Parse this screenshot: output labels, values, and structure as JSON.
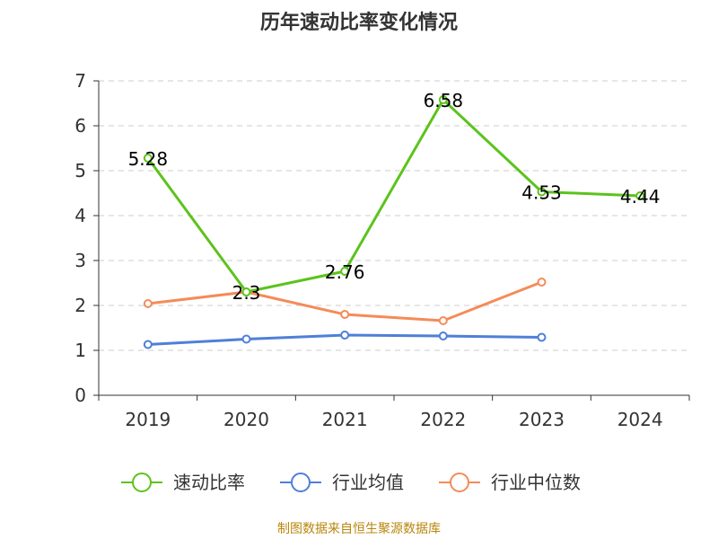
{
  "chart_data": {
    "type": "line",
    "title": "历年速动比率变化情况",
    "categories": [
      "2019",
      "2020",
      "2021",
      "2022",
      "2023",
      "2024"
    ],
    "ylim": [
      0,
      7
    ],
    "yticks": [
      "0",
      "1",
      "2",
      "3",
      "4",
      "5",
      "6",
      "7"
    ],
    "grid": true,
    "legend_position": "bottom",
    "series": [
      {
        "name": "速动比率",
        "color": "#5cc31c",
        "values": [
          5.28,
          2.3,
          2.76,
          6.58,
          4.53,
          4.44
        ],
        "labels": [
          "5.28",
          "2.3",
          "2.76",
          "6.58",
          "4.53",
          "4.44"
        ]
      },
      {
        "name": "行业均值",
        "color": "#4f7fd9",
        "values": [
          1.13,
          1.25,
          1.34,
          1.32,
          1.29,
          null
        ]
      },
      {
        "name": "行业中位数",
        "color": "#f58b58",
        "values": [
          2.04,
          2.3,
          1.8,
          1.66,
          2.52,
          null
        ]
      }
    ],
    "source": "制图数据来自恒生聚源数据库"
  }
}
